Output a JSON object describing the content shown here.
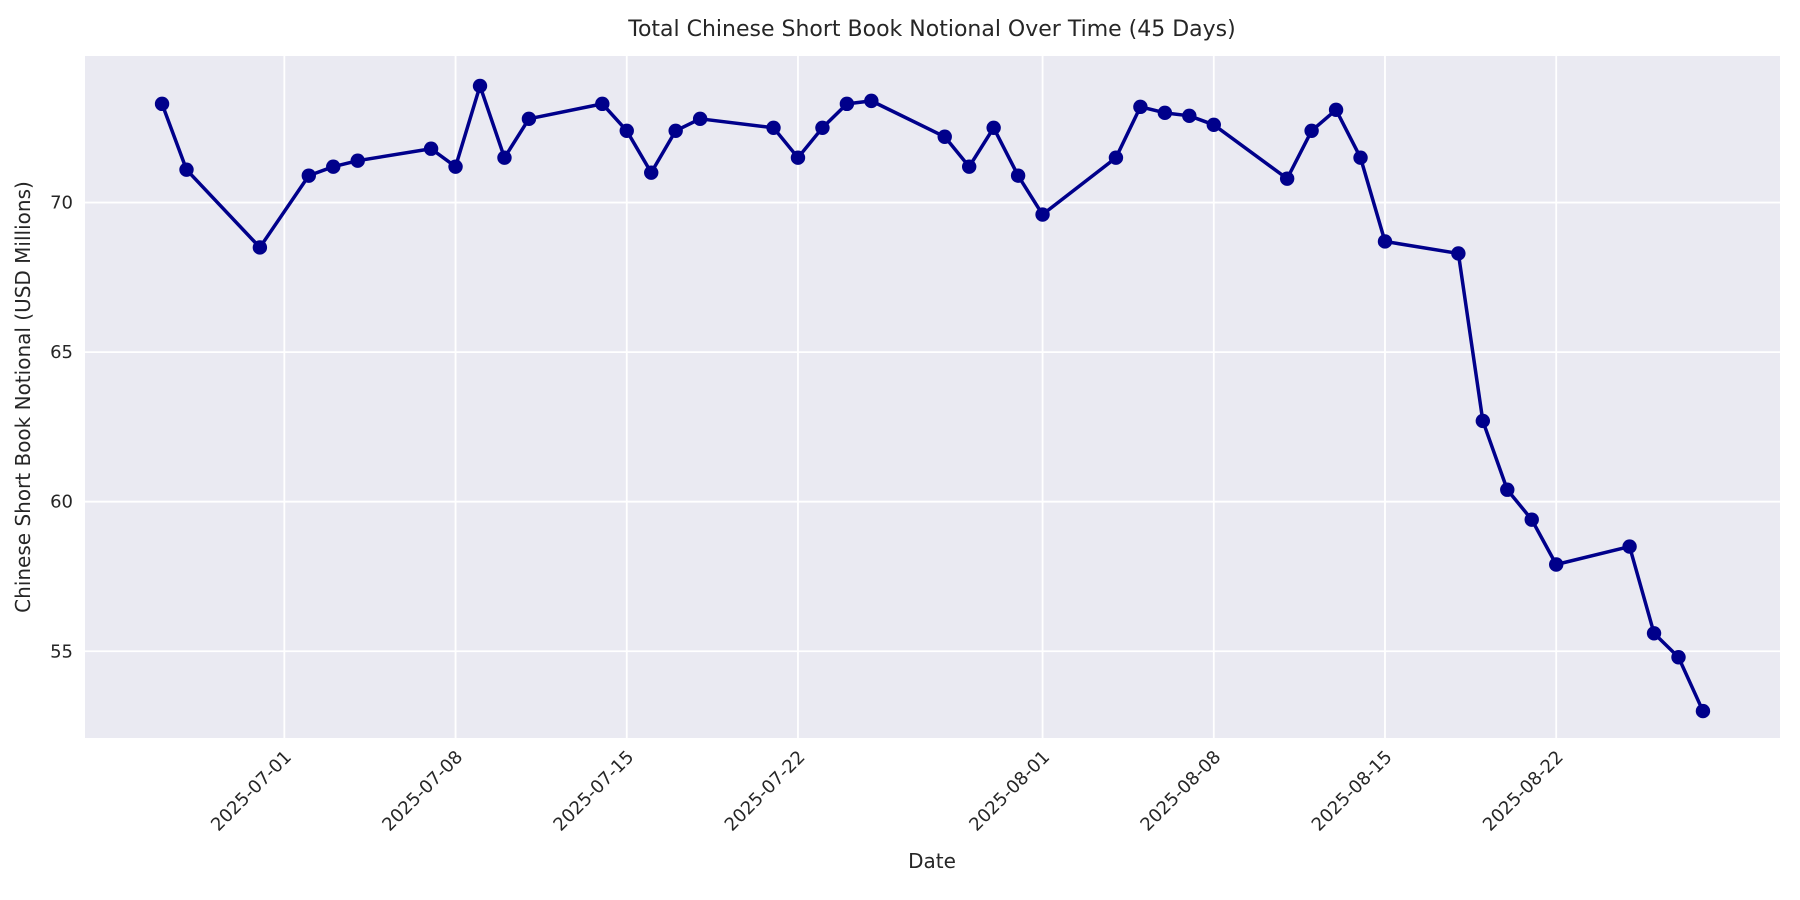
{
  "chart_data": {
    "type": "line",
    "title": "Total Chinese Short Book Notional Over Time (45 Days)",
    "xlabel": "Date",
    "ylabel": "Chinese Short Book Notional (USD Millions)",
    "x_tick_labels": [
      "2025-07-01",
      "2025-07-08",
      "2025-07-15",
      "2025-07-22",
      "2025-08-01",
      "2025-08-08",
      "2025-08-15",
      "2025-08-22"
    ],
    "y_tick_labels": [
      55,
      60,
      65,
      70
    ],
    "ylim": [
      52.1,
      74.9
    ],
    "grid": "on",
    "legend": "none",
    "style": "seaborn-darkgrid",
    "colors": {
      "line": "#00008b",
      "marker": "#00008b",
      "axes_background": "#eaeaf2",
      "gridline": "#ffffff",
      "figure_background": "#ffffff",
      "text": "#262626"
    },
    "series": [
      {
        "name": "Total Chinese Short Book Notional",
        "x": [
          "2025-06-26",
          "2025-06-27",
          "2025-06-30",
          "2025-07-02",
          "2025-07-03",
          "2025-07-04",
          "2025-07-07",
          "2025-07-08",
          "2025-07-09",
          "2025-07-10",
          "2025-07-11",
          "2025-07-14",
          "2025-07-15",
          "2025-07-16",
          "2025-07-17",
          "2025-07-18",
          "2025-07-21",
          "2025-07-22",
          "2025-07-23",
          "2025-07-24",
          "2025-07-25",
          "2025-07-28",
          "2025-07-29",
          "2025-07-30",
          "2025-07-31",
          "2025-08-01",
          "2025-08-04",
          "2025-08-05",
          "2025-08-06",
          "2025-08-07",
          "2025-08-08",
          "2025-08-11",
          "2025-08-12",
          "2025-08-13",
          "2025-08-14",
          "2025-08-15",
          "2025-08-18",
          "2025-08-19",
          "2025-08-20",
          "2025-08-21",
          "2025-08-22",
          "2025-08-25",
          "2025-08-26",
          "2025-08-27",
          "2025-08-28"
        ],
        "values": [
          73.3,
          71.1,
          68.5,
          70.9,
          71.2,
          71.4,
          71.8,
          71.2,
          73.9,
          71.5,
          72.8,
          73.3,
          72.4,
          71.0,
          72.4,
          72.8,
          72.5,
          71.5,
          72.5,
          73.3,
          73.4,
          72.2,
          71.2,
          72.5,
          70.9,
          69.6,
          71.5,
          73.2,
          73.0,
          72.9,
          72.6,
          70.8,
          72.4,
          73.1,
          71.5,
          68.7,
          68.3,
          62.7,
          60.4,
          59.4,
          57.9,
          58.5,
          55.6,
          54.8,
          53.0
        ]
      }
    ]
  }
}
